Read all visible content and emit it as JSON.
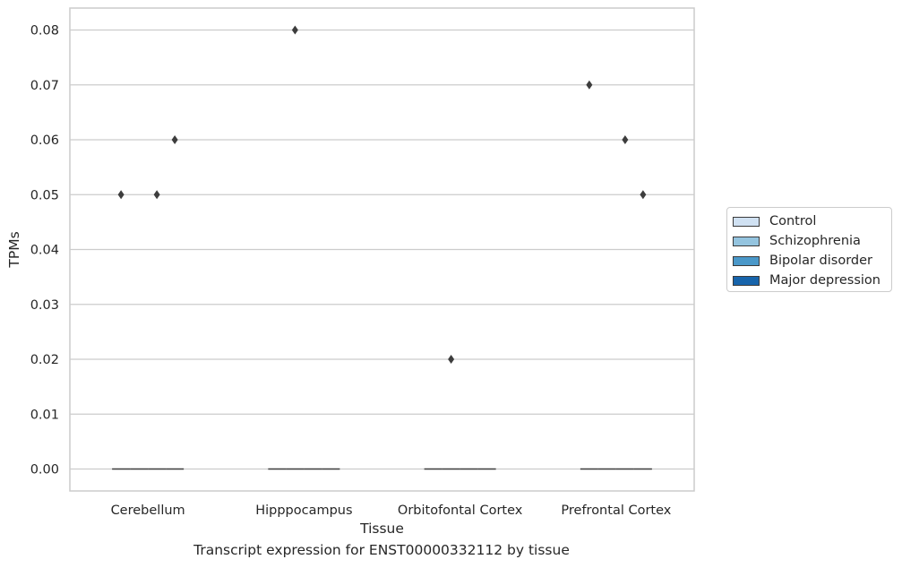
{
  "chart_data": {
    "type": "box",
    "title": "",
    "caption": "Transcript expression for ENST00000332112 by tissue",
    "xlabel": "Tissue",
    "ylabel": "TPMs",
    "ylim": [
      -0.004,
      0.084
    ],
    "yticks": [
      "0.00",
      "0.01",
      "0.02",
      "0.03",
      "0.04",
      "0.05",
      "0.06",
      "0.07",
      "0.08"
    ],
    "grid": true,
    "legend_position": "right",
    "categories": [
      "Cerebellum",
      "Hipppocampus",
      "Orbitofontal Cortex",
      "Prefrontal Cortex"
    ],
    "series": [
      {
        "name": "Control",
        "color": "#d0e1f2",
        "medians": [
          0,
          0,
          0,
          0
        ],
        "outliers": [
          [
            0.05
          ],
          [],
          [],
          [
            0.07
          ]
        ]
      },
      {
        "name": "Schizophrenia",
        "color": "#94c4df",
        "medians": [
          0,
          0,
          0,
          0
        ],
        "outliers": [
          [],
          [
            0.08
          ],
          [
            0.02
          ],
          []
        ]
      },
      {
        "name": "Bipolar disorder",
        "color": "#4a98c9",
        "medians": [
          0,
          0,
          0,
          0
        ],
        "outliers": [
          [
            0.05
          ],
          [],
          [],
          [
            0.06
          ]
        ]
      },
      {
        "name": "Major depression",
        "color": "#1764ab",
        "medians": [
          0,
          0,
          0,
          0
        ],
        "outliers": [
          [
            0.06
          ],
          [],
          [],
          [
            0.05
          ]
        ]
      }
    ]
  }
}
